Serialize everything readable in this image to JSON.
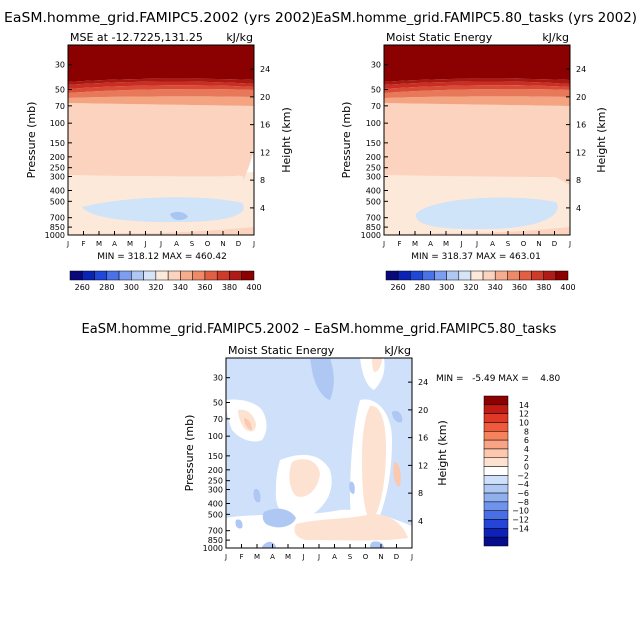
{
  "titles": {
    "left": "EaSM.homme_grid.FAMIPC5.2002 (yrs 2002)",
    "right": "EaSM.homme_grid.FAMIPC5.80_tasks (yrs 2002)",
    "diff": "EaSM.homme_grid.FAMIPC5.2002 – EaSM.homme_grid.FAMIPC5.80_tasks"
  },
  "chart_data": [
    {
      "type": "heatmap",
      "subtitle_left": "MSE at -12.7225,131.25",
      "subtitle_right": "kJ/kg",
      "xlabel": "",
      "ylabel": "Pressure (mb)",
      "y2label": "Height (km)",
      "x_ticks": [
        "J",
        "F",
        "M",
        "A",
        "M",
        "J",
        "J",
        "A",
        "S",
        "O",
        "N",
        "D",
        "J"
      ],
      "y_ticks": [
        30,
        50,
        70,
        100,
        150,
        200,
        250,
        300,
        400,
        500,
        700,
        850,
        1000
      ],
      "y2_ticks": [
        24,
        20,
        16,
        12,
        8,
        4
      ],
      "ylim": [
        1000,
        20
      ],
      "stats": "MIN = 318.12 MAX = 460.42",
      "min": 318.12,
      "max": 460.42,
      "contour_levels": [
        260,
        270,
        280,
        290,
        300,
        310,
        320,
        330,
        340,
        350,
        360,
        370,
        380,
        390,
        400
      ],
      "colorbar_labels": [
        "260",
        "280",
        "300",
        "320",
        "340",
        "360",
        "380",
        "400"
      ]
    },
    {
      "type": "heatmap",
      "subtitle_left": "Moist Static Energy",
      "subtitle_right": "kJ/kg",
      "xlabel": "",
      "ylabel": "Pressure (mb)",
      "y2label": "Height (km)",
      "x_ticks": [
        "J",
        "F",
        "M",
        "A",
        "M",
        "J",
        "J",
        "A",
        "S",
        "O",
        "N",
        "D",
        "J"
      ],
      "y_ticks": [
        30,
        50,
        70,
        100,
        150,
        200,
        250,
        300,
        400,
        500,
        700,
        850,
        1000
      ],
      "y2_ticks": [
        24,
        20,
        16,
        12,
        8,
        4
      ],
      "ylim": [
        1000,
        20
      ],
      "stats": "MIN = 318.37 MAX = 463.01",
      "min": 318.37,
      "max": 463.01,
      "contour_levels": [
        260,
        270,
        280,
        290,
        300,
        310,
        320,
        330,
        340,
        350,
        360,
        370,
        380,
        390,
        400
      ],
      "colorbar_labels": [
        "260",
        "280",
        "300",
        "320",
        "340",
        "360",
        "380",
        "400"
      ]
    },
    {
      "type": "heatmap",
      "subtitle_left": "Moist Static Energy",
      "subtitle_right": "kJ/kg",
      "xlabel": "",
      "ylabel": "Pressure (mb)",
      "y2label": "Height (km)",
      "x_ticks": [
        "J",
        "F",
        "M",
        "A",
        "M",
        "J",
        "J",
        "A",
        "S",
        "O",
        "N",
        "D",
        "J"
      ],
      "y_ticks": [
        30,
        50,
        70,
        100,
        150,
        200,
        250,
        300,
        400,
        500,
        700,
        850,
        1000
      ],
      "y2_ticks": [
        24,
        20,
        16,
        12,
        8,
        4
      ],
      "ylim": [
        1000,
        20
      ],
      "stats": "MIN =   -5.49 MAX =    4.80",
      "min": -5.49,
      "max": 4.8,
      "contour_levels": [
        -14,
        -12,
        -10,
        -8,
        -6,
        -4,
        -2,
        0,
        2,
        4,
        6,
        8,
        10,
        12,
        14
      ],
      "colorbar_labels": [
        "14",
        "12",
        "10",
        "8",
        "6",
        "4",
        "2",
        "0",
        "−2",
        "−4",
        "−6",
        "−8",
        "−10",
        "−12",
        "−14"
      ]
    }
  ]
}
